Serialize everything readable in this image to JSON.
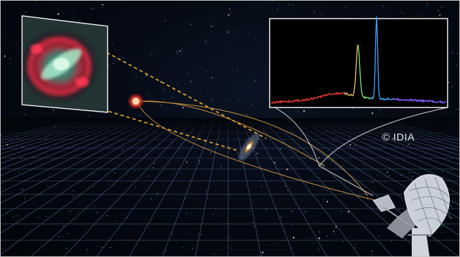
{
  "credit": {
    "text": "© IDIA"
  },
  "colors": {
    "background": "#02040a",
    "grid": "#5a74a0",
    "lens_lines": "#e0a030",
    "light_paths": "#d79a45",
    "spectrum_red": "#e53935",
    "spectrum_green": "#7ee07a",
    "spectrum_blue": "#3aa0ff",
    "spectrum_violet": "#8a5cff"
  },
  "icons": [
    "einstein-ring-image",
    "quasar-source",
    "lensing-galaxy",
    "spectrum-panel",
    "radio-telescope-dish"
  ]
}
